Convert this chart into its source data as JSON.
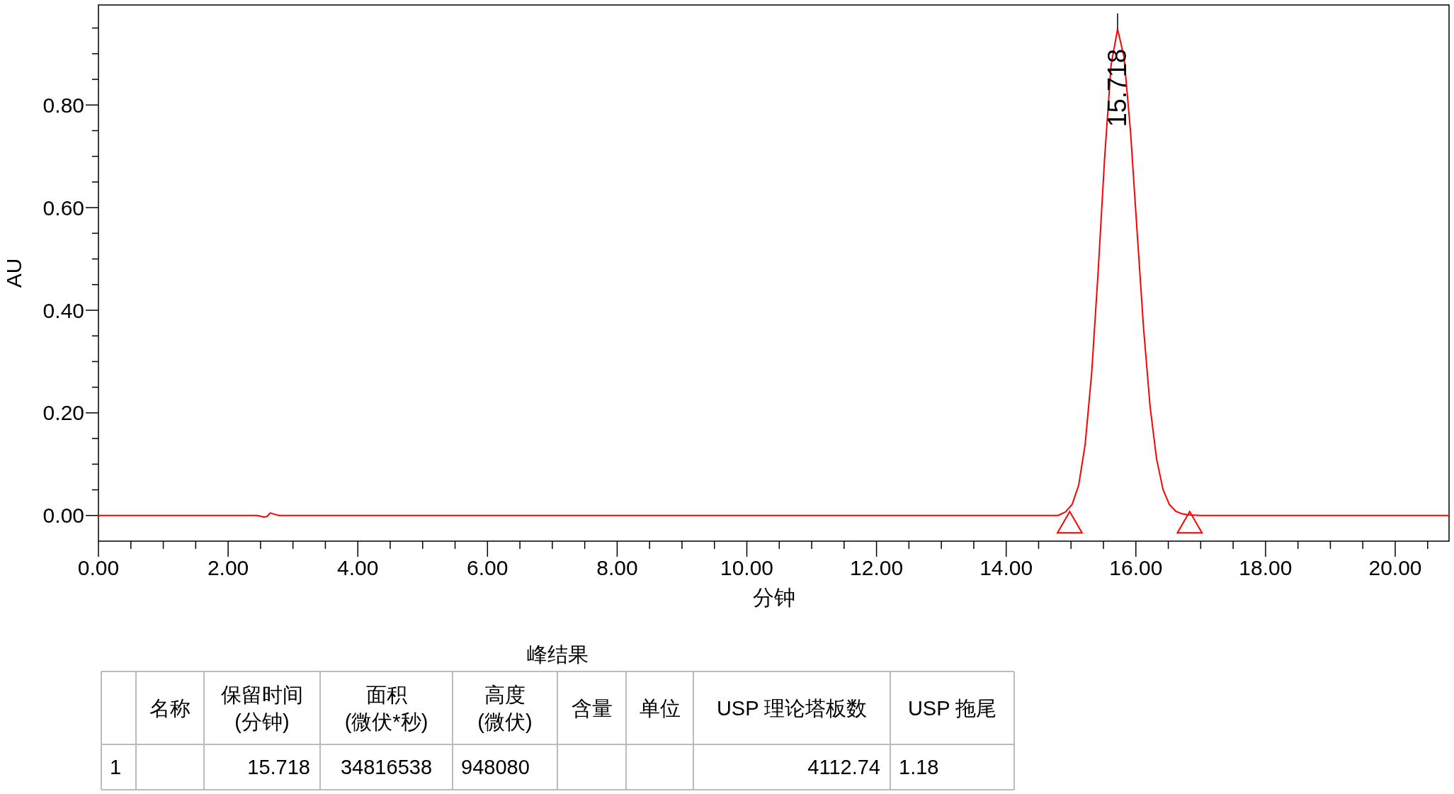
{
  "chart_data": {
    "type": "line",
    "xlabel": "分钟",
    "ylabel": "AU",
    "xlim": [
      0,
      20.83
    ],
    "ylim": [
      -0.05,
      0.995
    ],
    "xticks": [
      {
        "value": 0,
        "label": "0.00"
      },
      {
        "value": 0.5,
        "label": null
      },
      {
        "value": 1,
        "label": null
      },
      {
        "value": 1.5,
        "label": null
      },
      {
        "value": 2,
        "label": "2.00"
      },
      {
        "value": 2.5,
        "label": null
      },
      {
        "value": 3,
        "label": null
      },
      {
        "value": 3.5,
        "label": null
      },
      {
        "value": 4,
        "label": "4.00"
      },
      {
        "value": 4.5,
        "label": null
      },
      {
        "value": 5,
        "label": null
      },
      {
        "value": 5.5,
        "label": null
      },
      {
        "value": 6,
        "label": "6.00"
      },
      {
        "value": 6.5,
        "label": null
      },
      {
        "value": 7,
        "label": null
      },
      {
        "value": 7.5,
        "label": null
      },
      {
        "value": 8,
        "label": "8.00"
      },
      {
        "value": 8.5,
        "label": null
      },
      {
        "value": 9,
        "label": null
      },
      {
        "value": 9.5,
        "label": null
      },
      {
        "value": 10,
        "label": "10.00"
      },
      {
        "value": 10.5,
        "label": null
      },
      {
        "value": 11,
        "label": null
      },
      {
        "value": 11.5,
        "label": null
      },
      {
        "value": 12,
        "label": "12.00"
      },
      {
        "value": 12.5,
        "label": null
      },
      {
        "value": 13,
        "label": null
      },
      {
        "value": 13.5,
        "label": null
      },
      {
        "value": 14,
        "label": "14.00"
      },
      {
        "value": 14.5,
        "label": null
      },
      {
        "value": 15,
        "label": null
      },
      {
        "value": 15.5,
        "label": null
      },
      {
        "value": 16,
        "label": "16.00"
      },
      {
        "value": 16.5,
        "label": null
      },
      {
        "value": 17,
        "label": null
      },
      {
        "value": 17.5,
        "label": null
      },
      {
        "value": 18,
        "label": "18.00"
      },
      {
        "value": 18.5,
        "label": null
      },
      {
        "value": 19,
        "label": null
      },
      {
        "value": 19.5,
        "label": null
      },
      {
        "value": 20,
        "label": "20.00"
      },
      {
        "value": 20.5,
        "label": null
      }
    ],
    "yticks": [
      {
        "value": 0,
        "label": "0.00"
      },
      {
        "value": 0.05,
        "label": null
      },
      {
        "value": 0.1,
        "label": null
      },
      {
        "value": 0.15,
        "label": null
      },
      {
        "value": 0.2,
        "label": "0.20"
      },
      {
        "value": 0.25,
        "label": null
      },
      {
        "value": 0.3,
        "label": null
      },
      {
        "value": 0.35,
        "label": null
      },
      {
        "value": 0.4,
        "label": "0.40"
      },
      {
        "value": 0.45,
        "label": null
      },
      {
        "value": 0.5,
        "label": null
      },
      {
        "value": 0.55,
        "label": null
      },
      {
        "value": 0.6,
        "label": "0.60"
      },
      {
        "value": 0.65,
        "label": null
      },
      {
        "value": 0.7,
        "label": null
      },
      {
        "value": 0.75,
        "label": null
      },
      {
        "value": 0.8,
        "label": "0.80"
      },
      {
        "value": 0.85,
        "label": null
      },
      {
        "value": 0.9,
        "label": null
      },
      {
        "value": 0.95,
        "label": null
      }
    ],
    "grid": false,
    "series": [
      {
        "color": "#ff0000",
        "line_style": "solid",
        "marker": "none",
        "x": [
          0,
          1,
          2,
          2.45,
          2.55,
          2.6,
          2.65,
          2.7,
          2.78,
          3,
          5,
          8,
          12,
          14.8,
          14.918,
          15.018,
          15.118,
          15.218,
          15.318,
          15.418,
          15.518,
          15.618,
          15.718,
          15.818,
          15.918,
          16.018,
          16.118,
          16.218,
          16.318,
          16.418,
          16.518,
          16.618,
          16.718,
          16.818,
          17,
          18,
          20.83
        ],
        "values": [
          0,
          0,
          0,
          0,
          -0.003,
          -0.002,
          0.005,
          0.003,
          0,
          0,
          0,
          0,
          0,
          0,
          0.007,
          0.022,
          0.059,
          0.139,
          0.277,
          0.475,
          0.697,
          0.878,
          0.948,
          0.893,
          0.747,
          0.555,
          0.366,
          0.214,
          0.111,
          0.051,
          0.021,
          0.008,
          0.003,
          0.001,
          0,
          0,
          0
        ]
      },
      {
        "type": "scatter",
        "color": "#ff0000",
        "marker": "triangle",
        "x": [
          14.98,
          16.83
        ],
        "values": [
          -0.02,
          -0.02
        ]
      }
    ],
    "annotations": [
      "15.718",
      "峰结果",
      "名称",
      "保留时间\n(分钟)",
      "面积\n(微伏*秒)",
      "高度\n(微伏)",
      "含量",
      "单位",
      "USP 理论塔板数",
      "USP 拖尾",
      "1",
      "15.718",
      "34816538",
      "948080",
      "4112.74",
      "1.18"
    ]
  }
}
